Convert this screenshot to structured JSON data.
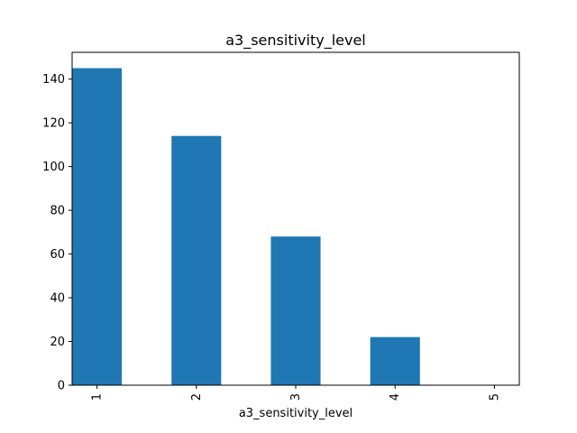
{
  "chart_data": {
    "type": "bar",
    "title": "a3_sensitivity_level",
    "xlabel": "a3_sensitivity_level",
    "ylabel": "",
    "categories": [
      "1",
      "2",
      "3",
      "4",
      "5"
    ],
    "values": [
      145,
      114,
      68,
      22,
      0
    ],
    "ylim": [
      0,
      152.25
    ],
    "yticks": [
      0,
      20,
      40,
      60,
      80,
      100,
      120,
      140
    ],
    "grid": false,
    "legend": "none",
    "bar_color": "#1f77b4",
    "x_tick_rotation": "vertical"
  }
}
